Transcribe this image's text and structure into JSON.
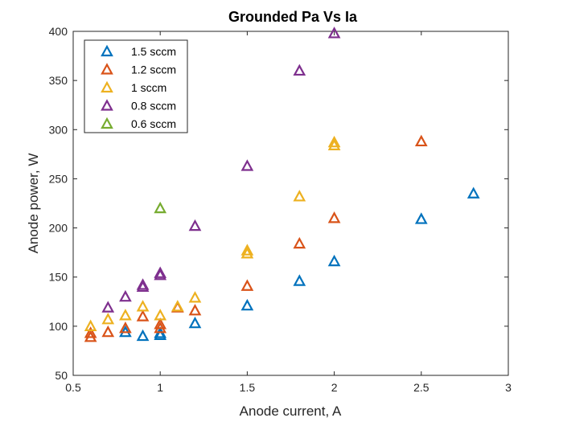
{
  "chart_data": {
    "type": "scatter",
    "title": "Grounded Pa Vs Ia",
    "xlabel": "Anode current, A",
    "ylabel": "Anode power, W",
    "xlim": [
      0.5,
      3
    ],
    "ylim": [
      50,
      400
    ],
    "xticks": [
      "0.5",
      "1",
      "1.5",
      "2",
      "2.5",
      "3"
    ],
    "yticks": [
      "50",
      "100",
      "150",
      "200",
      "250",
      "300",
      "350",
      "400"
    ],
    "xtick_values": [
      0.5,
      1,
      1.5,
      2,
      2.5,
      3
    ],
    "ytick_values": [
      50,
      100,
      150,
      200,
      250,
      300,
      350,
      400
    ],
    "grid": false,
    "legend_position": "top-left",
    "marker": "open-triangle",
    "series": [
      {
        "name": "1.5 sccm",
        "color": "#0072BD",
        "x": [
          0.8,
          0.9,
          1.0,
          1.0,
          1.2,
          1.5,
          1.8,
          2.0,
          2.5,
          2.8
        ],
        "y": [
          94,
          90,
          91,
          93,
          103,
          121,
          146,
          166,
          209,
          235
        ]
      },
      {
        "name": "1.2 sccm",
        "color": "#D95319",
        "x": [
          0.6,
          0.6,
          0.7,
          0.8,
          0.9,
          1.0,
          1.0,
          1.1,
          1.2,
          1.5,
          1.8,
          2.0,
          2.5
        ],
        "y": [
          89,
          93,
          94,
          98,
          110,
          98,
          102,
          119,
          116,
          141,
          184,
          210,
          288
        ]
      },
      {
        "name": "1 sccm",
        "color": "#EDB120",
        "x": [
          0.6,
          0.7,
          0.8,
          0.9,
          1.0,
          1.1,
          1.2,
          1.5,
          1.5,
          1.8,
          2.0,
          2.0
        ],
        "y": [
          100,
          107,
          111,
          120,
          111,
          120,
          129,
          174,
          177,
          232,
          284,
          287
        ]
      },
      {
        "name": "0.8 sccm",
        "color": "#7E2F8E",
        "x": [
          0.7,
          0.8,
          0.9,
          0.9,
          1.0,
          1.0,
          1.2,
          1.5,
          1.8,
          2.0
        ],
        "y": [
          119,
          130,
          140,
          142,
          152,
          154,
          202,
          263,
          360,
          398
        ]
      },
      {
        "name": "0.6 sccm",
        "color": "#77AC30",
        "x": [
          1.0
        ],
        "y": [
          220
        ]
      }
    ]
  }
}
